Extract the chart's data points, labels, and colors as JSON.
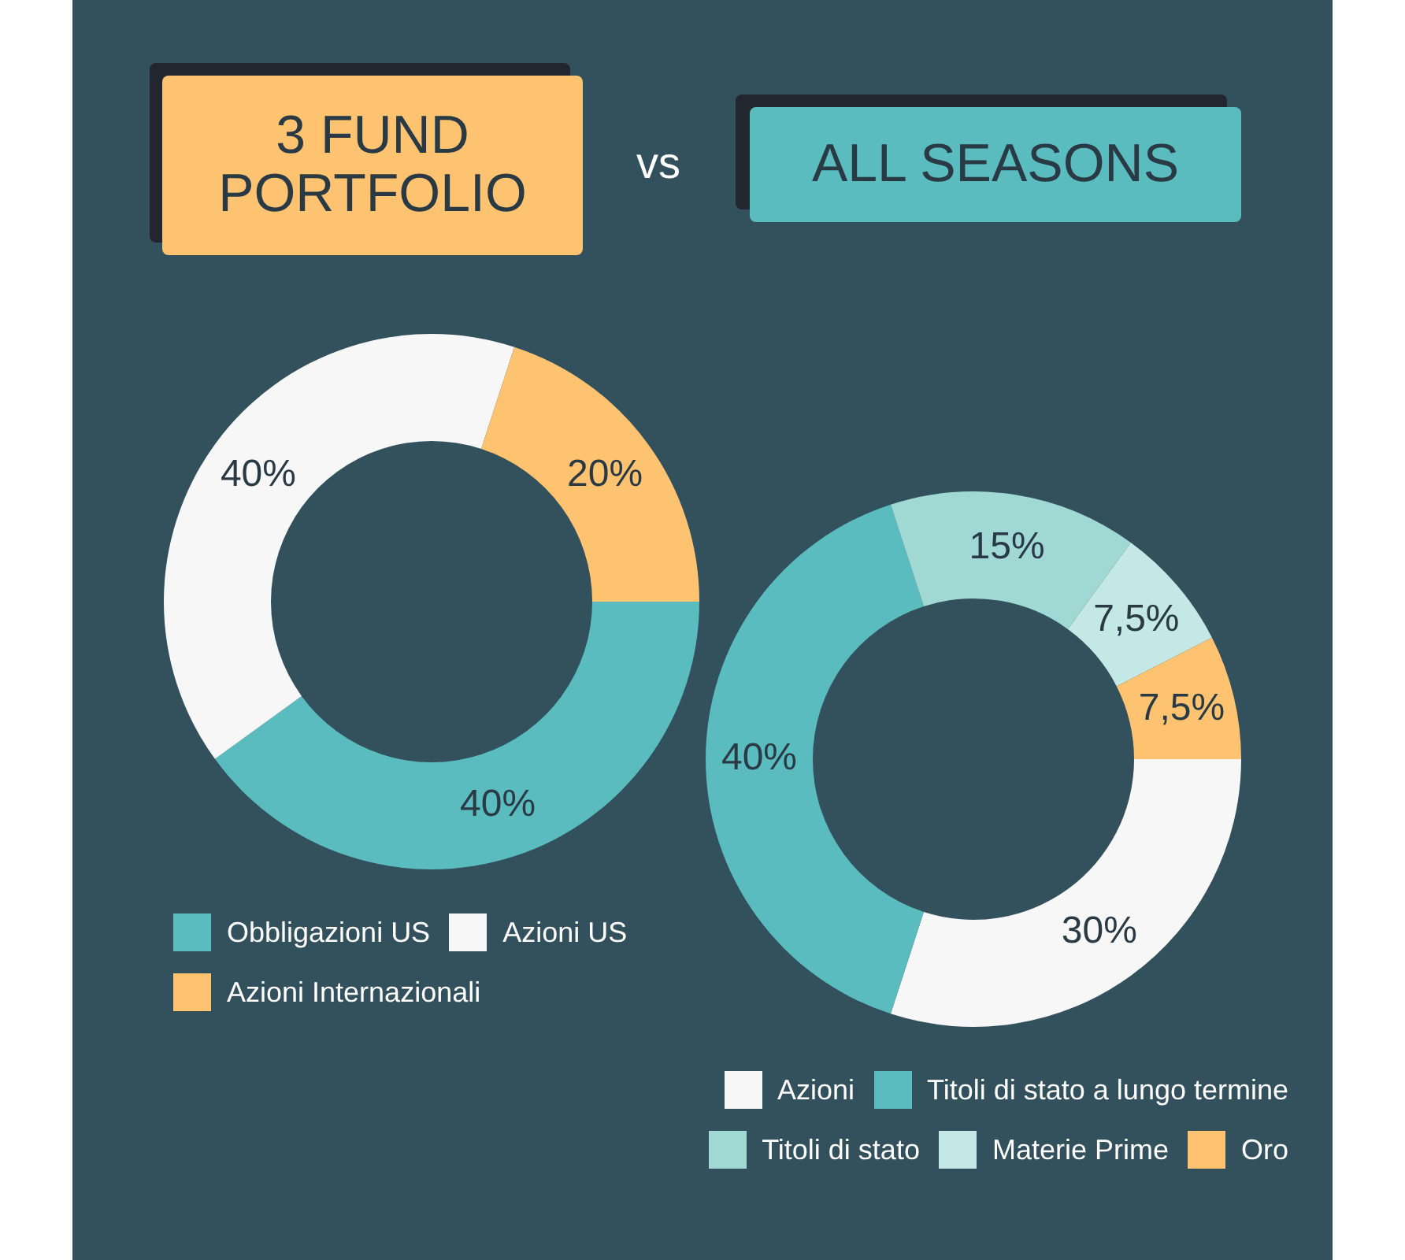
{
  "chart_data": [
    {
      "type": "donut",
      "title": "3 FUND PORTFOLIO",
      "annotations": [
        "vs"
      ],
      "categories": [
        "Obbligazioni US",
        "Azioni US",
        "Azioni Internazionali"
      ],
      "values": [
        40,
        40,
        20
      ],
      "colors": [
        "#5bbcbf",
        "#f7f7f7",
        "#fdc371"
      ],
      "value_labels": [
        "40%",
        "40%",
        "20%"
      ],
      "legend": "bottom"
    },
    {
      "type": "donut",
      "title": "ALL SEASONS",
      "categories": [
        "Azioni",
        "Titoli di stato a lungo termine",
        "Titoli di stato",
        "Materie Prime",
        "Oro"
      ],
      "values": [
        30,
        40,
        15,
        7.5,
        7.5
      ],
      "colors": [
        "#f7f7f7",
        "#5bbcbf",
        "#a0d8d3",
        "#c3e8e5",
        "#fdc371"
      ],
      "value_labels": [
        "30%",
        "40%",
        "15%",
        "7,5%",
        "7,5%"
      ],
      "legend": "bottom"
    }
  ]
}
